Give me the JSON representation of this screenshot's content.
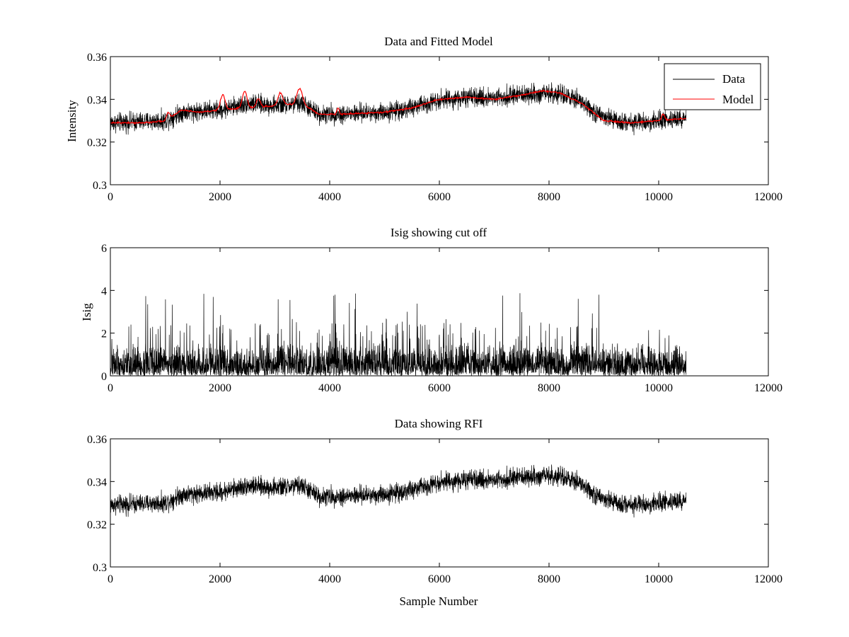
{
  "chart_data": [
    {
      "type": "line",
      "title": "Data and Fitted Model",
      "xlabel": "",
      "ylabel": "Intensity",
      "xlim": [
        0,
        12000
      ],
      "ylim": [
        0.3,
        0.36
      ],
      "xticks": [
        "0",
        "2000",
        "4000",
        "6000",
        "8000",
        "10000",
        "12000"
      ],
      "yticks": [
        "0.3",
        "0.32",
        "0.34",
        "0.36"
      ],
      "legend": {
        "position": "top-right",
        "entries": [
          "Data",
          "Model"
        ]
      },
      "x_range": [
        0,
        10500
      ],
      "series": [
        {
          "name": "Data",
          "color": "#000000",
          "noise_amplitude": 0.0065,
          "baseline": {
            "x": [
              0,
              1000,
              1300,
              2000,
              2500,
              3000,
              3500,
              3800,
              4200,
              5000,
              5500,
              6000,
              7000,
              7500,
              8000,
              8500,
              9000,
              9500,
              10000,
              10500
            ],
            "y": [
              0.329,
              0.33,
              0.334,
              0.335,
              0.338,
              0.337,
              0.338,
              0.333,
              0.333,
              0.334,
              0.336,
              0.34,
              0.341,
              0.342,
              0.343,
              0.34,
              0.331,
              0.329,
              0.33,
              0.331
            ]
          }
        },
        {
          "name": "Model",
          "color": "#ff0000",
          "noise_amplitude": 0.0006,
          "baseline": {
            "x": [
              0,
              600,
              1000,
              1300,
              1600,
              2000,
              2500,
              3000,
              3500,
              3800,
              4200,
              5000,
              5500,
              6000,
              6500,
              7000,
              7500,
              7900,
              8200,
              8600,
              9000,
              9500,
              10000,
              10500
            ],
            "y": [
              0.329,
              0.329,
              0.33,
              0.335,
              0.334,
              0.335,
              0.336,
              0.337,
              0.338,
              0.333,
              0.333,
              0.334,
              0.336,
              0.34,
              0.341,
              0.34,
              0.342,
              0.344,
              0.343,
              0.338,
              0.33,
              0.329,
              0.33,
              0.331
            ]
          },
          "peaks": [
            {
              "x": 1050,
              "height": 0.003,
              "width": 40
            },
            {
              "x": 2050,
              "height": 0.007,
              "width": 60
            },
            {
              "x": 2450,
              "height": 0.008,
              "width": 60
            },
            {
              "x": 2700,
              "height": 0.004,
              "width": 50
            },
            {
              "x": 3100,
              "height": 0.006,
              "width": 60
            },
            {
              "x": 3450,
              "height": 0.007,
              "width": 70
            },
            {
              "x": 4150,
              "height": 0.003,
              "width": 30
            },
            {
              "x": 10080,
              "height": 0.003,
              "width": 40
            }
          ]
        }
      ]
    },
    {
      "type": "line",
      "title": "Isig showing cut off",
      "xlabel": "",
      "ylabel": "Isig",
      "xlim": [
        0,
        12000
      ],
      "ylim": [
        0,
        6
      ],
      "xticks": [
        "0",
        "2000",
        "4000",
        "6000",
        "8000",
        "10000",
        "12000"
      ],
      "yticks": [
        "0",
        "2",
        "4",
        "6"
      ],
      "x_range": [
        0,
        10500
      ],
      "series": [
        {
          "name": "Isig",
          "color": "#000000",
          "typical_max": 2.2,
          "occasional_peak": 3.9
        }
      ]
    },
    {
      "type": "line",
      "title": "Data showing RFI",
      "xlabel": "Sample Number",
      "ylabel": "",
      "xlim": [
        0,
        12000
      ],
      "ylim": [
        0.3,
        0.36
      ],
      "xticks": [
        "0",
        "2000",
        "4000",
        "6000",
        "8000",
        "10000",
        "12000"
      ],
      "yticks": [
        "0.3",
        "0.32",
        "0.34",
        "0.36"
      ],
      "x_range": [
        0,
        10500
      ],
      "series": [
        {
          "name": "Data",
          "color": "#000000",
          "noise_amplitude": 0.0065,
          "baseline": {
            "x": [
              0,
              1000,
              1300,
              2000,
              2500,
              3000,
              3500,
              3800,
              4200,
              5000,
              5500,
              6000,
              7000,
              7500,
              8000,
              8500,
              9000,
              9500,
              10000,
              10500
            ],
            "y": [
              0.329,
              0.33,
              0.334,
              0.335,
              0.338,
              0.337,
              0.338,
              0.333,
              0.333,
              0.334,
              0.336,
              0.34,
              0.341,
              0.342,
              0.343,
              0.34,
              0.331,
              0.329,
              0.33,
              0.331
            ]
          }
        }
      ]
    }
  ]
}
